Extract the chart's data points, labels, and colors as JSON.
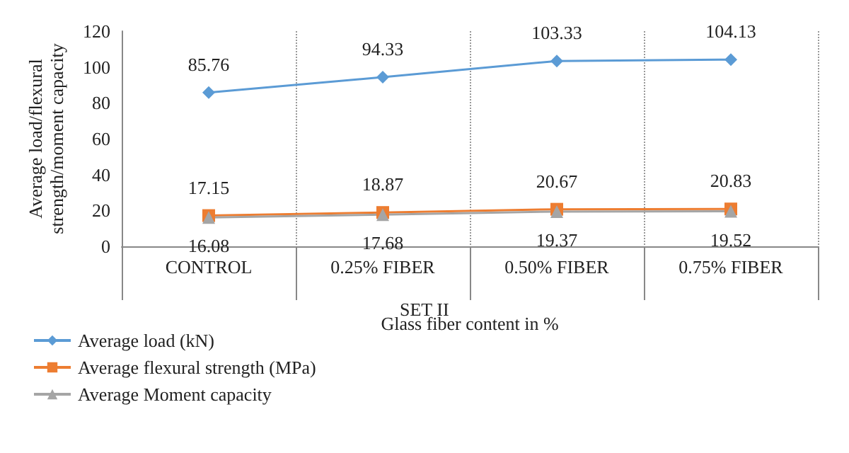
{
  "chart_data": {
    "type": "line",
    "xlabel": "Glass fiber content in %",
    "ylabel": "Average load/flexural\nstrength/moment capacity",
    "categories": [
      "CONTROL",
      "0.25% FIBER",
      "0.50% FIBER",
      "0.75% FIBER"
    ],
    "series": [
      {
        "name": "Average load (kN)",
        "color": "#5b9bd5",
        "marker": "diamond",
        "values": [
          85.76,
          94.33,
          103.33,
          104.13
        ]
      },
      {
        "name": "Average flexural strength (MPa)",
        "color": "#ed7d31",
        "marker": "square",
        "values": [
          17.15,
          18.87,
          20.67,
          20.83
        ]
      },
      {
        "name": "Average Moment capacity",
        "color": "#a5a5a5",
        "marker": "triangle",
        "values": [
          16.08,
          17.68,
          19.37,
          19.52
        ]
      }
    ],
    "ylim": [
      0,
      120
    ],
    "yticks": [
      0,
      20,
      40,
      60,
      80,
      100,
      120
    ],
    "grid": "x",
    "legend": "bottom left",
    "data_labels": true,
    "annotations": [
      "SET II"
    ]
  }
}
